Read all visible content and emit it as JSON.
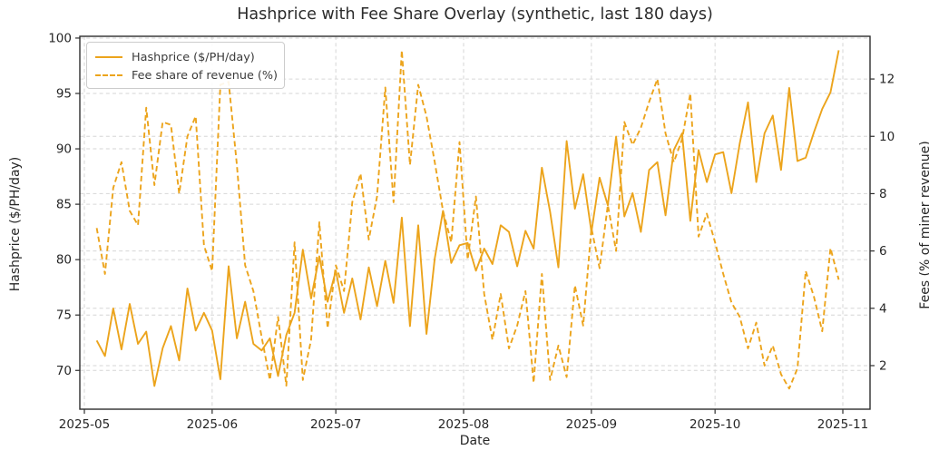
{
  "title": "Hashprice with Fee Share Overlay (synthetic, last 180 days)",
  "axes": {
    "x_label": "Date",
    "y_left_label": "Hashprice ($/PH/day)",
    "y_right_label": "Fees (% of miner revenue)",
    "x_tick_labels": [
      "2025-05",
      "2025-06",
      "2025-07",
      "2025-08",
      "2025-09",
      "2025-10",
      "2025-11"
    ],
    "y_left_tick_labels": [
      "70",
      "75",
      "80",
      "85",
      "90",
      "95",
      "100"
    ],
    "y_right_tick_labels": [
      "2",
      "4",
      "6",
      "8",
      "10",
      "12"
    ]
  },
  "legend": {
    "items": [
      {
        "label": "Hashprice ($/PH/day)",
        "style": "solid"
      },
      {
        "label": "Fee share of revenue (%)",
        "style": "dashed"
      }
    ]
  },
  "colors": {
    "series": "#eca41c",
    "grid": "#d6d6d6",
    "spine": "#2e2e2e",
    "text": "#262626",
    "background": "#ffffff"
  },
  "chart_data": {
    "type": "line",
    "title": "Hashprice with Fee Share Overlay (synthetic, last 180 days)",
    "xlabel": "Date",
    "ylabel_left": "Hashprice ($/PH/day)",
    "ylabel_right": "Fees (% of miner revenue)",
    "x_start_date": "2025-05-04",
    "x_step_days": 2,
    "x_month_tick_days": [
      0,
      31,
      61,
      92,
      123,
      153,
      184
    ],
    "xlim_days": [
      -1.1,
      190.6
    ],
    "left_ylim": [
      66.5,
      100.16
    ],
    "right_ylim": [
      0.48,
      13.49
    ],
    "left_yticks": [
      70,
      75,
      80,
      85,
      90,
      95,
      100
    ],
    "right_yticks": [
      2,
      4,
      6,
      8,
      10,
      12
    ],
    "grid": true,
    "legend_position": "upper-left",
    "series": [
      {
        "name": "Hashprice ($/PH/day)",
        "axis": "left",
        "style": "solid",
        "values": [
          72.7,
          71.3,
          75.6,
          71.9,
          76.0,
          72.4,
          73.5,
          68.6,
          72.0,
          74.0,
          70.9,
          77.4,
          73.6,
          75.2,
          73.6,
          69.2,
          79.4,
          72.9,
          76.2,
          72.4,
          71.8,
          72.9,
          69.5,
          73.2,
          75.2,
          80.9,
          76.5,
          80.3,
          76.2,
          79.0,
          75.2,
          78.3,
          74.6,
          79.3,
          75.8,
          79.9,
          76.1,
          83.8,
          74.0,
          83.1,
          73.3,
          80.1,
          84.4,
          79.7,
          81.3,
          81.5,
          79.0,
          81.0,
          79.6,
          83.1,
          82.5,
          79.4,
          82.6,
          81.0,
          88.3,
          84.3,
          79.3,
          90.7,
          84.6,
          87.7,
          82.5,
          87.4,
          84.9,
          91.1,
          83.9,
          86.0,
          82.5,
          88.1,
          88.8,
          84.0,
          89.9,
          91.4,
          83.5,
          89.9,
          87.0,
          89.5,
          89.7,
          86.0,
          90.5,
          94.2,
          87.0,
          91.4,
          93.0,
          88.1,
          95.5,
          88.9,
          89.2,
          91.5,
          93.6,
          95.1,
          98.9
        ]
      },
      {
        "name": "Fee share of revenue (%)",
        "axis": "right",
        "style": "dashed",
        "values": [
          6.8,
          5.2,
          8.2,
          9.1,
          7.4,
          6.9,
          11.0,
          8.3,
          10.5,
          10.4,
          8.0,
          10.0,
          10.7,
          6.2,
          5.3,
          11.8,
          11.9,
          9.0,
          5.5,
          4.6,
          3.0,
          1.5,
          3.7,
          1.3,
          6.3,
          1.5,
          2.9,
          7.0,
          3.3,
          5.5,
          4.6,
          7.7,
          8.7,
          6.4,
          7.9,
          11.7,
          7.7,
          13.0,
          9.0,
          11.8,
          10.7,
          9.1,
          7.4,
          6.3,
          9.8,
          5.7,
          7.9,
          4.5,
          2.9,
          4.5,
          2.6,
          3.4,
          4.6,
          1.4,
          5.2,
          1.5,
          2.7,
          1.6,
          4.8,
          3.4,
          6.8,
          5.4,
          7.6,
          6.0,
          10.5,
          9.7,
          10.3,
          11.2,
          12.0,
          10.1,
          9.1,
          9.9,
          11.5,
          6.5,
          7.3,
          6.3,
          5.2,
          4.2,
          3.7,
          2.6,
          3.5,
          2.0,
          2.7,
          1.7,
          1.2,
          1.9,
          5.3,
          4.4,
          3.2,
          6.1,
          5.0
        ]
      }
    ]
  }
}
